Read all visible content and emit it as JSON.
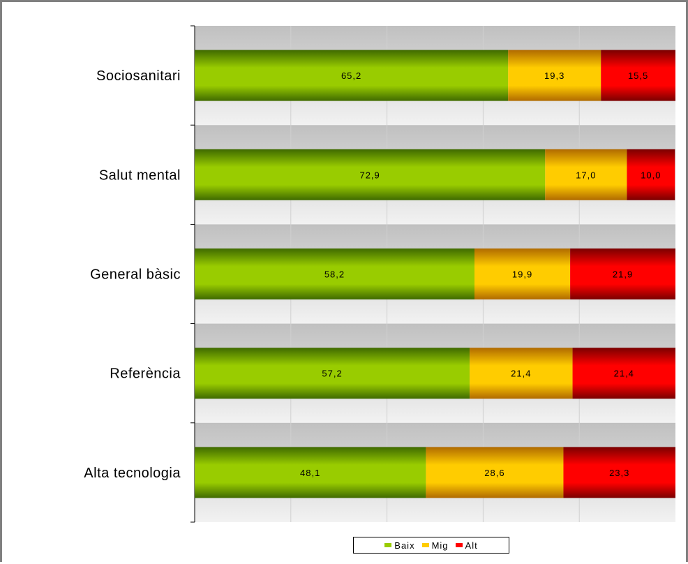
{
  "chart_data": {
    "type": "bar",
    "orientation": "horizontal",
    "stacked": true,
    "categories": [
      "Sociosanitari",
      "Salut mental",
      "General bàsic",
      "Referència",
      "Alta tecnologia"
    ],
    "series": [
      {
        "name": "Baix",
        "color": "#99cc00",
        "values": [
          65.2,
          72.9,
          58.2,
          57.2,
          48.1
        ],
        "labels": [
          "65,2",
          "72,9",
          "58,2",
          "57,2",
          "48,1"
        ]
      },
      {
        "name": "Mig",
        "color": "#ffcc00",
        "values": [
          19.3,
          17.0,
          19.9,
          21.4,
          28.6
        ],
        "labels": [
          "19,3",
          "17,0",
          "19,9",
          "21,4",
          "28,6"
        ]
      },
      {
        "name": "Alt",
        "color": "#ff0000",
        "values": [
          15.5,
          10.0,
          21.9,
          21.4,
          23.3
        ],
        "labels": [
          "15,5",
          "10,0",
          "21,9",
          "21,4",
          "23,3"
        ]
      }
    ],
    "xlim": [
      0,
      100
    ],
    "grid": true,
    "legend_position": "bottom"
  }
}
